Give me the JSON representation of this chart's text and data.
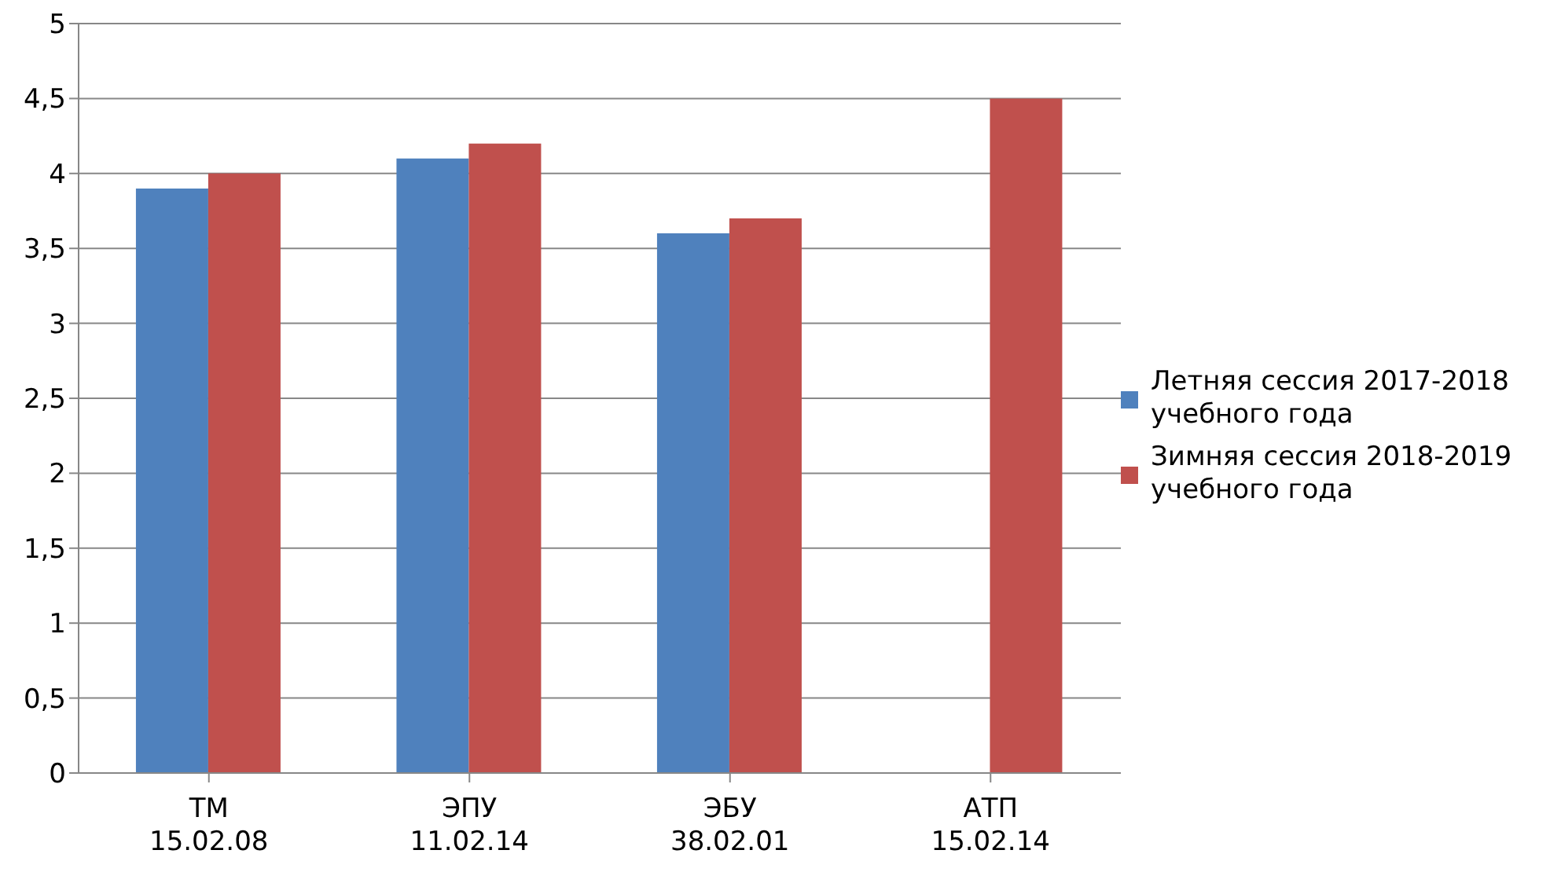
{
  "chart_data": {
    "type": "bar",
    "categories": [
      "ТМ\n15.02.08",
      "ЭПУ\n11.02.14",
      "ЭБУ\n38.02.01",
      "АТП\n15.02.14"
    ],
    "series": [
      {
        "name": "Летняя сессия 2017-2018 учебного года",
        "color": "#4f81bd",
        "values": [
          3.9,
          4.1,
          3.6,
          null
        ]
      },
      {
        "name": "Зимняя сессия 2018-2019 учебного года",
        "color": "#c0504d",
        "values": [
          4.0,
          4.2,
          3.7,
          4.5
        ]
      }
    ],
    "ylim": [
      0,
      5
    ],
    "yticks": [
      0,
      {
        "value": 0.5,
        "label": "0,5"
      },
      1,
      {
        "value": 1.5,
        "label": "1,5"
      },
      2,
      {
        "value": 2.5,
        "label": "2,5"
      },
      3,
      {
        "value": 3.5,
        "label": "3,5"
      },
      4,
      {
        "value": 4.5,
        "label": "4,5"
      },
      5
    ],
    "grid": "y",
    "legend": "right"
  }
}
